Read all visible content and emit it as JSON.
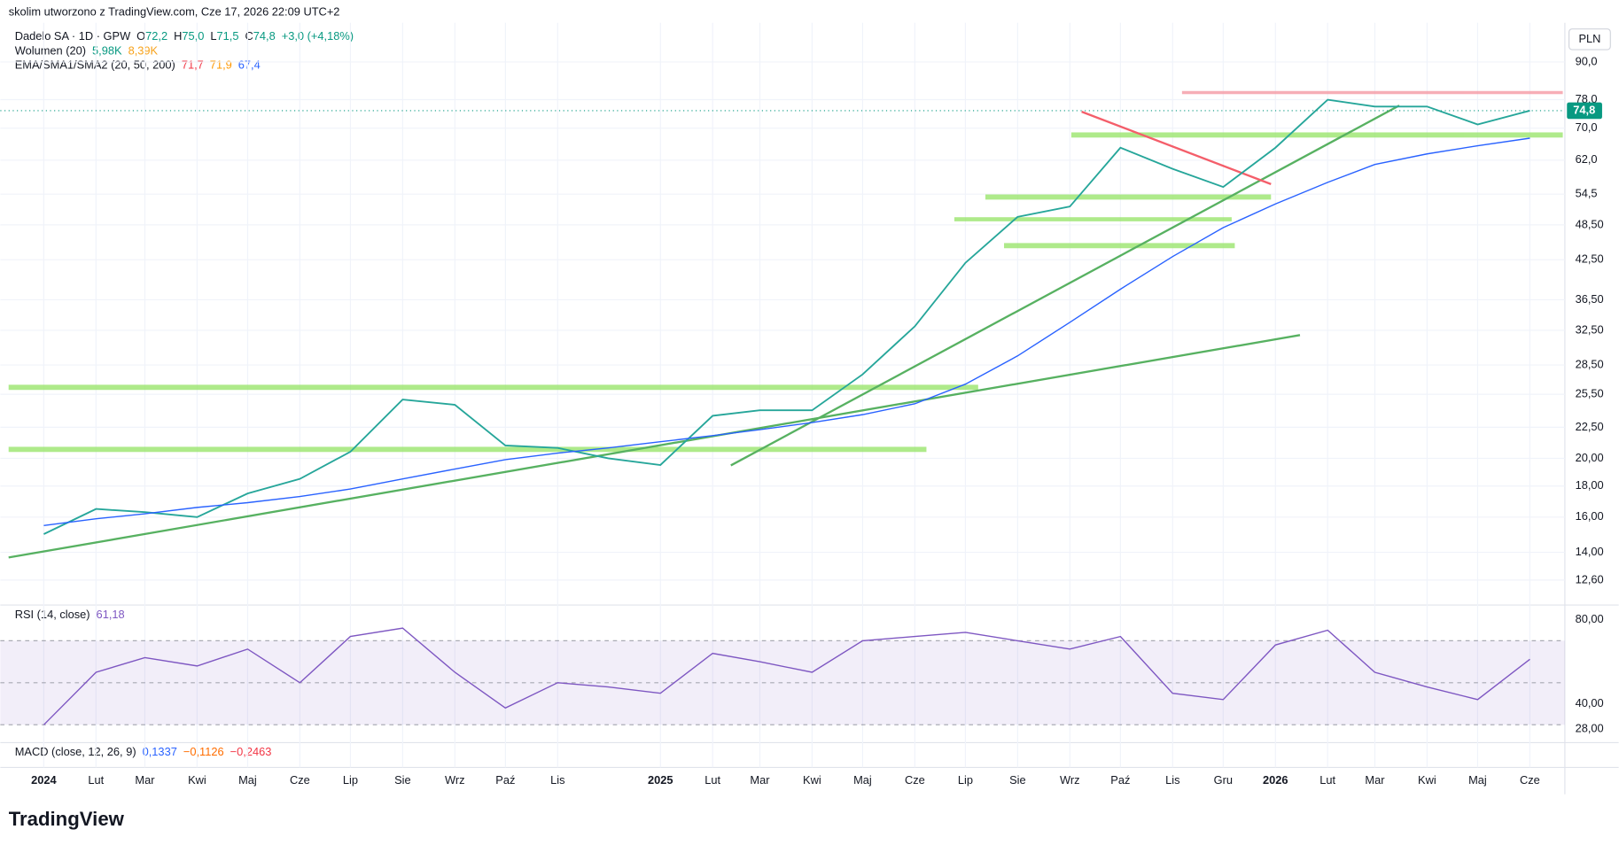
{
  "header": {
    "caption": "skolim utworzono z TradingView.com, Cze 17, 2026 22:09 UTC+2",
    "instrument": "Dadelo SA · 1D · GPW",
    "ohlc": [
      {
        "label": "O",
        "value": "72,2"
      },
      {
        "label": "H",
        "value": "75,0"
      },
      {
        "label": "L",
        "value": "71,5"
      },
      {
        "label": "C",
        "value": "74,8"
      }
    ],
    "change": "+3,0 (+4,18%)",
    "volume": {
      "label": "Wolumen (20)",
      "values": [
        "5,98K",
        "8,39K"
      ]
    },
    "ma": {
      "label": "EMA/SMA1/SMA2 (20, 50, 200)",
      "values": [
        "71,7",
        "71,9",
        "67,4"
      ]
    },
    "rsi": {
      "label": "RSI (14, close)",
      "value": "61,18"
    },
    "macd": {
      "label": "MACD (close, 12, 26, 9)",
      "values": [
        "0,1337",
        "−0,1126",
        "−0,2463"
      ]
    },
    "currency": "PLN"
  },
  "chart_data": [
    {
      "type": "line",
      "log_scale": true,
      "grid": true,
      "x": [
        "2024-01",
        "2024-02",
        "2024-03",
        "2024-04",
        "2024-05",
        "2024-06",
        "2024-07",
        "2024-08",
        "2024-09",
        "2024-10",
        "2024-11",
        "2024-12",
        "2025-01",
        "2025-02",
        "2025-03",
        "2025-04",
        "2025-05",
        "2025-06",
        "2025-07",
        "2025-08",
        "2025-09",
        "2025-10",
        "2025-11",
        "2025-12",
        "2026-01",
        "2026-02",
        "2026-03",
        "2026-04",
        "2026-05",
        "2026-06"
      ],
      "series": [
        {
          "color": "#26a69a",
          "values": [
            15.0,
            16.5,
            16.3,
            16.0,
            17.5,
            18.5,
            20.5,
            25.0,
            24.5,
            21.0,
            20.8,
            20.0,
            19.5,
            23.5,
            24.0,
            24.0,
            27.5,
            33.0,
            42.0,
            50.0,
            52.0,
            65.0,
            60.0,
            56.0,
            65.0,
            78.0,
            76.0,
            76.0,
            71.0,
            74.8
          ]
        },
        {
          "color": "#2962ff",
          "values": [
            15.5,
            15.9,
            16.2,
            16.6,
            16.9,
            17.3,
            17.8,
            18.5,
            19.2,
            19.9,
            20.4,
            20.8,
            21.3,
            21.8,
            22.3,
            22.9,
            23.6,
            24.6,
            26.5,
            29.5,
            33.5,
            38.0,
            43.0,
            48.0,
            52.5,
            57.0,
            61.0,
            63.5,
            65.5,
            67.4
          ]
        }
      ],
      "xlim": [
        "2023-12",
        "2026-07"
      ],
      "xticks": [
        {
          "value": "2024-01",
          "label": "2024"
        },
        {
          "value": "2024-02",
          "label": "Lut"
        },
        {
          "value": "2024-03",
          "label": "Mar"
        },
        {
          "value": "2024-04",
          "label": "Kwi"
        },
        {
          "value": "2024-05",
          "label": "Maj"
        },
        {
          "value": "2024-06",
          "label": "Cze"
        },
        {
          "value": "2024-07",
          "label": "Lip"
        },
        {
          "value": "2024-08",
          "label": "Sie"
        },
        {
          "value": "2024-09",
          "label": "Wrz"
        },
        {
          "value": "2024-10",
          "label": "Paź"
        },
        {
          "value": "2024-11",
          "label": "Lis"
        },
        {
          "value": "2025-01",
          "label": "2025"
        },
        {
          "value": "2025-02",
          "label": "Lut"
        },
        {
          "value": "2025-03",
          "label": "Mar"
        },
        {
          "value": "2025-04",
          "label": "Kwi"
        },
        {
          "value": "2025-05",
          "label": "Maj"
        },
        {
          "value": "2025-06",
          "label": "Cze"
        },
        {
          "value": "2025-07",
          "label": "Lip"
        },
        {
          "value": "2025-08",
          "label": "Sie"
        },
        {
          "value": "2025-09",
          "label": "Wrz"
        },
        {
          "value": "2025-10",
          "label": "Paź"
        },
        {
          "value": "2025-11",
          "label": "Lis"
        },
        {
          "value": "2025-12",
          "label": "Gru"
        },
        {
          "value": "2026-01",
          "label": "2026"
        },
        {
          "value": "2026-02",
          "label": "Lut"
        },
        {
          "value": "2026-03",
          "label": "Mar"
        },
        {
          "value": "2026-04",
          "label": "Kwi"
        },
        {
          "value": "2026-05",
          "label": "Maj"
        },
        {
          "value": "2026-06",
          "label": "Cze"
        }
      ],
      "ylim": [
        11.55,
        102
      ],
      "yticks": [
        {
          "value": 90,
          "label": "90,0"
        },
        {
          "value": 78,
          "label": "78,0"
        },
        {
          "value": 70,
          "label": "70,0"
        },
        {
          "value": 62,
          "label": "62,0"
        },
        {
          "value": 54.5,
          "label": "54,5"
        },
        {
          "value": 48.5,
          "label": "48,50"
        },
        {
          "value": 42.5,
          "label": "42,50"
        },
        {
          "value": 36.5,
          "label": "36,50"
        },
        {
          "value": 32.5,
          "label": "32,50"
        },
        {
          "value": 28.5,
          "label": "28,50"
        },
        {
          "value": 25.5,
          "label": "25,50"
        },
        {
          "value": 22.5,
          "label": "22,50"
        },
        {
          "value": 20,
          "label": "20,00"
        },
        {
          "value": 18,
          "label": "18,00"
        },
        {
          "value": 16,
          "label": "16,00"
        },
        {
          "value": 14,
          "label": "14,00"
        },
        {
          "value": 12.6,
          "label": "12,60"
        }
      ],
      "last_price": {
        "value": 74.8,
        "label": "74,8"
      }
    },
    {
      "type": "line",
      "x": [
        "2024-01",
        "2024-02",
        "2024-03",
        "2024-04",
        "2024-05",
        "2024-06",
        "2024-07",
        "2024-08",
        "2024-09",
        "2024-10",
        "2024-11",
        "2024-12",
        "2025-01",
        "2025-02",
        "2025-03",
        "2025-04",
        "2025-05",
        "2025-06",
        "2025-07",
        "2025-08",
        "2025-09",
        "2025-10",
        "2025-11",
        "2025-12",
        "2026-01",
        "2026-02",
        "2026-03",
        "2026-04",
        "2026-05",
        "2026-06"
      ],
      "values": [
        30,
        55,
        62,
        58,
        66,
        50,
        72,
        76,
        55,
        38,
        50,
        48,
        45,
        64,
        60,
        55,
        70,
        72,
        74,
        70,
        66,
        72,
        45,
        42,
        68,
        75,
        55,
        48,
        42,
        61.18
      ],
      "color": "#7e57c2",
      "levels": [
        30,
        50,
        70
      ],
      "ylim": [
        22,
        86
      ],
      "yticks": [
        {
          "value": 80,
          "label": "80,00"
        },
        {
          "value": 40,
          "label": "40,00"
        },
        {
          "value": 28,
          "label": "28,00"
        }
      ]
    }
  ],
  "logo": "TradingView"
}
